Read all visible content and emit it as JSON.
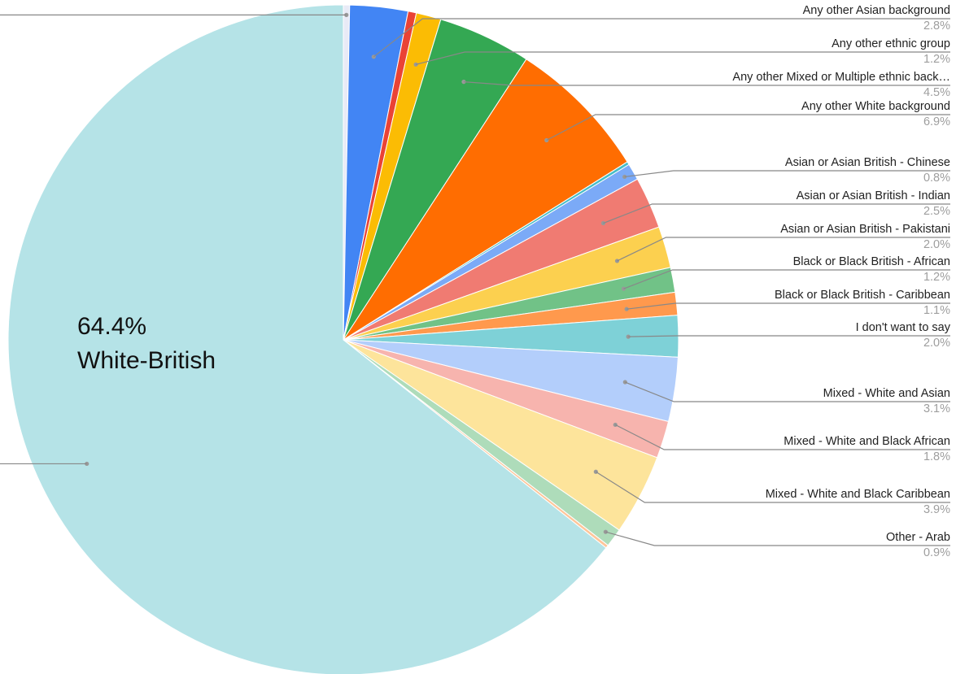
{
  "chart_data": {
    "type": "pie",
    "title": "",
    "legend": "none",
    "highlight_label": {
      "percent": "64.4%",
      "name": "White-British"
    },
    "slices": [
      {
        "name": "",
        "percent_text": "",
        "value": 0.3,
        "color": "#e8eaf6",
        "label_side": "left"
      },
      {
        "name": "Any other Asian  background",
        "percent_text": "2.8%",
        "value": 2.8,
        "color": "#4285f4",
        "label_side": "right"
      },
      {
        "name": "",
        "percent_text": "",
        "value": 0.4,
        "color": "#ea4335",
        "label_side": "none"
      },
      {
        "name": "Any other ethnic group",
        "percent_text": "1.2%",
        "value": 1.2,
        "color": "#fbbc04",
        "label_side": "right"
      },
      {
        "name": "Any other Mixed or Multiple ethnic back…",
        "percent_text": "4.5%",
        "value": 4.5,
        "color": "#34a853",
        "label_side": "right"
      },
      {
        "name": "Any other White background",
        "percent_text": "6.9%",
        "value": 6.9,
        "color": "#ff6d01",
        "label_side": "right"
      },
      {
        "name": "",
        "percent_text": "",
        "value": 0.15,
        "color": "#46bdc6",
        "label_side": "none"
      },
      {
        "name": "Asian or Asian British - Chinese",
        "percent_text": "0.8%",
        "value": 0.8,
        "color": "#7baaf7",
        "label_side": "right"
      },
      {
        "name": "Asian or Asian British - Indian",
        "percent_text": "2.5%",
        "value": 2.5,
        "color": "#f07b72",
        "label_side": "right"
      },
      {
        "name": "Asian or Asian British - Pakistani",
        "percent_text": "2.0%",
        "value": 2.0,
        "color": "#fcd04f",
        "label_side": "right"
      },
      {
        "name": "Black or Black British - African",
        "percent_text": "1.2%",
        "value": 1.2,
        "color": "#71c287",
        "label_side": "right"
      },
      {
        "name": "Black or Black British - Caribbean",
        "percent_text": "1.1%",
        "value": 1.1,
        "color": "#ff994d",
        "label_side": "right"
      },
      {
        "name": "I don't want to say",
        "percent_text": "2.0%",
        "value": 2.0,
        "color": "#7ed1d7",
        "label_side": "right"
      },
      {
        "name": "Mixed - White and Asian",
        "percent_text": "3.1%",
        "value": 3.1,
        "color": "#b3cefb",
        "label_side": "right"
      },
      {
        "name": "Mixed - White and Black African",
        "percent_text": "1.8%",
        "value": 1.8,
        "color": "#f7b4ae",
        "label_side": "right"
      },
      {
        "name": "Mixed - White and Black Caribbean",
        "percent_text": "3.9%",
        "value": 3.9,
        "color": "#fde49b",
        "label_side": "right"
      },
      {
        "name": "Other - Arab",
        "percent_text": "0.9%",
        "value": 0.9,
        "color": "#aedcba",
        "label_side": "right"
      },
      {
        "name": "",
        "percent_text": "",
        "value": 0.15,
        "color": "#ffc599",
        "label_side": "none"
      },
      {
        "name": "",
        "percent_text": "",
        "value": 64.4,
        "color": "#b5e3e7",
        "label_side": "left"
      }
    ]
  }
}
